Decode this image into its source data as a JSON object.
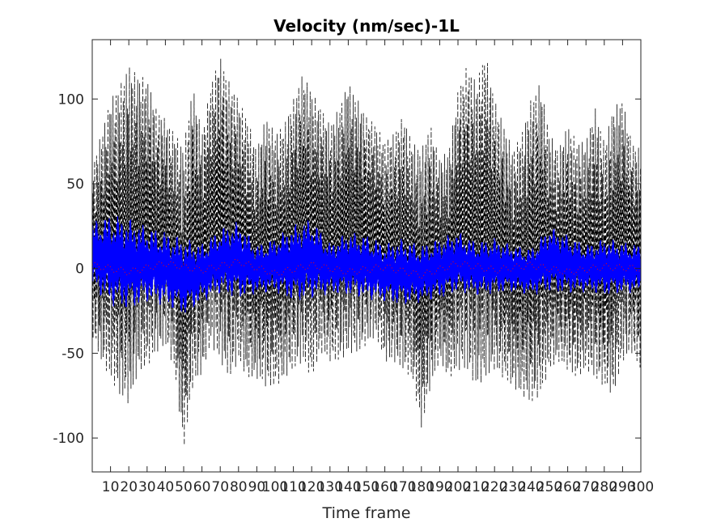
{
  "chart_data": {
    "type": "line",
    "title": "Velocity (nm/sec)-1L",
    "xlabel": "Time frame",
    "ylabel": "",
    "xlim": [
      0,
      300
    ],
    "ylim": [
      -120,
      135
    ],
    "grid": false,
    "legend": "none",
    "x_ticks": [
      10,
      20,
      30,
      40,
      50,
      60,
      70,
      80,
      90,
      100,
      110,
      120,
      130,
      140,
      150,
      160,
      170,
      180,
      190,
      200,
      210,
      220,
      230,
      240,
      250,
      260,
      270,
      280,
      290,
      300
    ],
    "x_tick_labels": [
      "10",
      "20",
      "30",
      "40",
      "50",
      "60",
      "70",
      "80",
      "90",
      "100",
      "110",
      "120",
      "130",
      "140",
      "150",
      "160",
      "170",
      "180",
      "190",
      "200",
      "210",
      "220",
      "230",
      "240",
      "250",
      "260",
      "270",
      "280",
      "290",
      "300"
    ],
    "y_ticks": [
      -100,
      -50,
      0,
      50,
      100
    ],
    "y_tick_labels": [
      "-100",
      "-50",
      "0",
      "50",
      "100"
    ],
    "colors": {
      "envelope": "#000000",
      "signal": "#0000ff",
      "mean": "#ff0000",
      "axes": "#262626"
    },
    "series": [
      {
        "style": "dashed-black",
        "description_values": "upper envelope peaks",
        "x": [
          0,
          5,
          10,
          15,
          20,
          25,
          30,
          35,
          40,
          45,
          50,
          55,
          60,
          65,
          70,
          75,
          80,
          85,
          90,
          95,
          100,
          105,
          110,
          115,
          120,
          125,
          130,
          135,
          140,
          145,
          150,
          155,
          160,
          165,
          170,
          175,
          180,
          185,
          190,
          195,
          200,
          205,
          210,
          215,
          220,
          225,
          230,
          235,
          240,
          245,
          250,
          255,
          260,
          265,
          270,
          275,
          280,
          285,
          290,
          295,
          300
        ],
        "values": [
          60,
          80,
          100,
          108,
          120,
          114,
          112,
          95,
          88,
          80,
          72,
          108,
          80,
          110,
          125,
          110,
          100,
          88,
          70,
          90,
          80,
          85,
          100,
          115,
          105,
          95,
          85,
          95,
          110,
          100,
          90,
          85,
          75,
          80,
          90,
          75,
          70,
          85,
          65,
          70,
          105,
          120,
          110,
          128,
          100,
          85,
          70,
          80,
          100,
          110,
          80,
          70,
          85,
          75,
          75,
          95,
          75,
          95,
          100,
          75,
          70
        ]
      },
      {
        "style": "dashed-black",
        "description_values": "lower envelope troughs",
        "x": [
          0,
          5,
          10,
          15,
          20,
          25,
          30,
          35,
          40,
          45,
          50,
          55,
          60,
          65,
          70,
          75,
          80,
          85,
          90,
          95,
          100,
          105,
          110,
          115,
          120,
          125,
          130,
          135,
          140,
          145,
          150,
          155,
          160,
          165,
          170,
          175,
          180,
          185,
          190,
          195,
          200,
          205,
          210,
          215,
          220,
          225,
          230,
          235,
          240,
          245,
          250,
          255,
          260,
          265,
          270,
          275,
          280,
          285,
          290,
          295,
          300
        ],
        "values": [
          -40,
          -55,
          -65,
          -75,
          -80,
          -62,
          -58,
          -50,
          -45,
          -60,
          -108,
          -70,
          -62,
          -45,
          -55,
          -65,
          -55,
          -65,
          -65,
          -70,
          -70,
          -65,
          -60,
          -55,
          -65,
          -50,
          -55,
          -55,
          -50,
          -50,
          -45,
          -40,
          -55,
          -55,
          -60,
          -65,
          -95,
          -70,
          -55,
          -65,
          -60,
          -60,
          -70,
          -65,
          -60,
          -65,
          -70,
          -75,
          -80,
          -75,
          -60,
          -55,
          -60,
          -65,
          -60,
          -65,
          -70,
          -75,
          -55,
          -50,
          -60
        ]
      },
      {
        "style": "solid-blue",
        "description_values": "signal band upper",
        "x": [
          0,
          10,
          20,
          30,
          40,
          50,
          60,
          70,
          80,
          90,
          100,
          110,
          120,
          130,
          140,
          150,
          160,
          170,
          180,
          190,
          200,
          210,
          220,
          230,
          240,
          250,
          260,
          270,
          280,
          290,
          300
        ],
        "values": [
          28,
          32,
          30,
          25,
          22,
          18,
          15,
          24,
          28,
          14,
          18,
          26,
          30,
          15,
          22,
          20,
          15,
          18,
          14,
          18,
          22,
          16,
          18,
          14,
          12,
          25,
          20,
          14,
          18,
          16,
          14
        ]
      },
      {
        "style": "solid-blue",
        "description_values": "signal band lower",
        "x": [
          0,
          10,
          20,
          30,
          40,
          50,
          60,
          70,
          80,
          90,
          100,
          110,
          120,
          130,
          140,
          150,
          160,
          170,
          180,
          190,
          200,
          210,
          220,
          230,
          240,
          250,
          260,
          270,
          280,
          290,
          300
        ],
        "values": [
          -12,
          -22,
          -25,
          -20,
          -22,
          -28,
          -20,
          -15,
          -18,
          -15,
          -14,
          -20,
          -18,
          -15,
          -16,
          -18,
          -20,
          -22,
          -20,
          -18,
          -14,
          -16,
          -15,
          -14,
          -16,
          -14,
          -15,
          -14,
          -16,
          -15,
          -14
        ]
      },
      {
        "style": "dotted-red",
        "description_values": "mean trace",
        "x": [
          0,
          20,
          40,
          60,
          80,
          100,
          120,
          140,
          160,
          180,
          200,
          220,
          240,
          260,
          280,
          300
        ],
        "values": [
          2,
          -2,
          3,
          -1,
          4,
          -3,
          2,
          -2,
          1,
          -4,
          3,
          -1,
          2,
          -2,
          1,
          0
        ]
      }
    ]
  }
}
